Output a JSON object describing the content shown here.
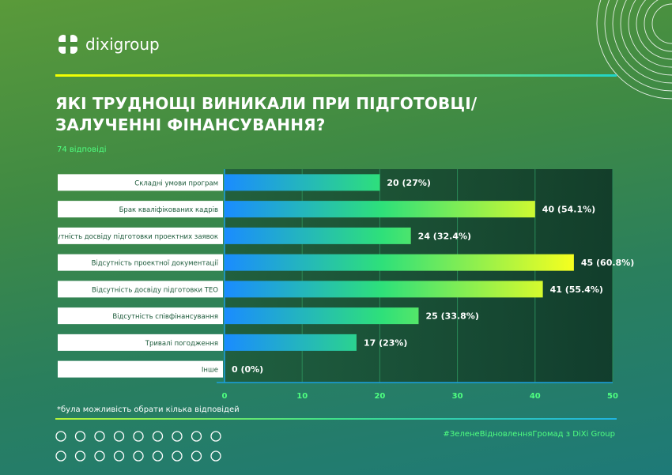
{
  "brand": {
    "name": "dixigroup"
  },
  "title": "ЯКІ ТРУДНОЩІ ВИНИКАЛИ ПРИ ПІДГОТОВЦІ/ЗАЛУЧЕННІ ФІНАНСУВАННЯ?",
  "responses": "74 відповіді",
  "footnote": "*була можливість обрати кілька відповідей",
  "hashtag": "#ЗеленеВідновленняГромад з DiXi Group",
  "colors": {
    "bar_gradient_start": "#1a8cff",
    "bar_gradient_mid": "#2ee07a",
    "bar_gradient_end": "#f6ff1f",
    "accent_green": "#4fff80",
    "plot_background": "#14452e"
  },
  "chart_data": {
    "type": "bar",
    "orientation": "horizontal",
    "categories": [
      "Складні умови програм",
      "Брак кваліфікованих кадрів",
      "Відсутність досвіду підготовки проектних заявок",
      "Відсутність проектної документації",
      "Відсутність досвіду підготовки ТЕО",
      "Відсутність співфінансування",
      "Тривалі погодження",
      "Інше"
    ],
    "values": [
      20,
      40,
      24,
      45,
      41,
      25,
      17,
      0
    ],
    "data_labels": [
      "20 (27%)",
      "40 (54.1%)",
      "24 (32.4%)",
      "45 (60.8%)",
      "41 (55.4%)",
      "25 (33.8%)",
      "17 (23%)",
      "0 (0%)"
    ],
    "xticks": [
      "0",
      "10",
      "20",
      "30",
      "40",
      "50"
    ],
    "xlim": [
      0,
      50
    ],
    "grid": true,
    "legend": "none"
  }
}
